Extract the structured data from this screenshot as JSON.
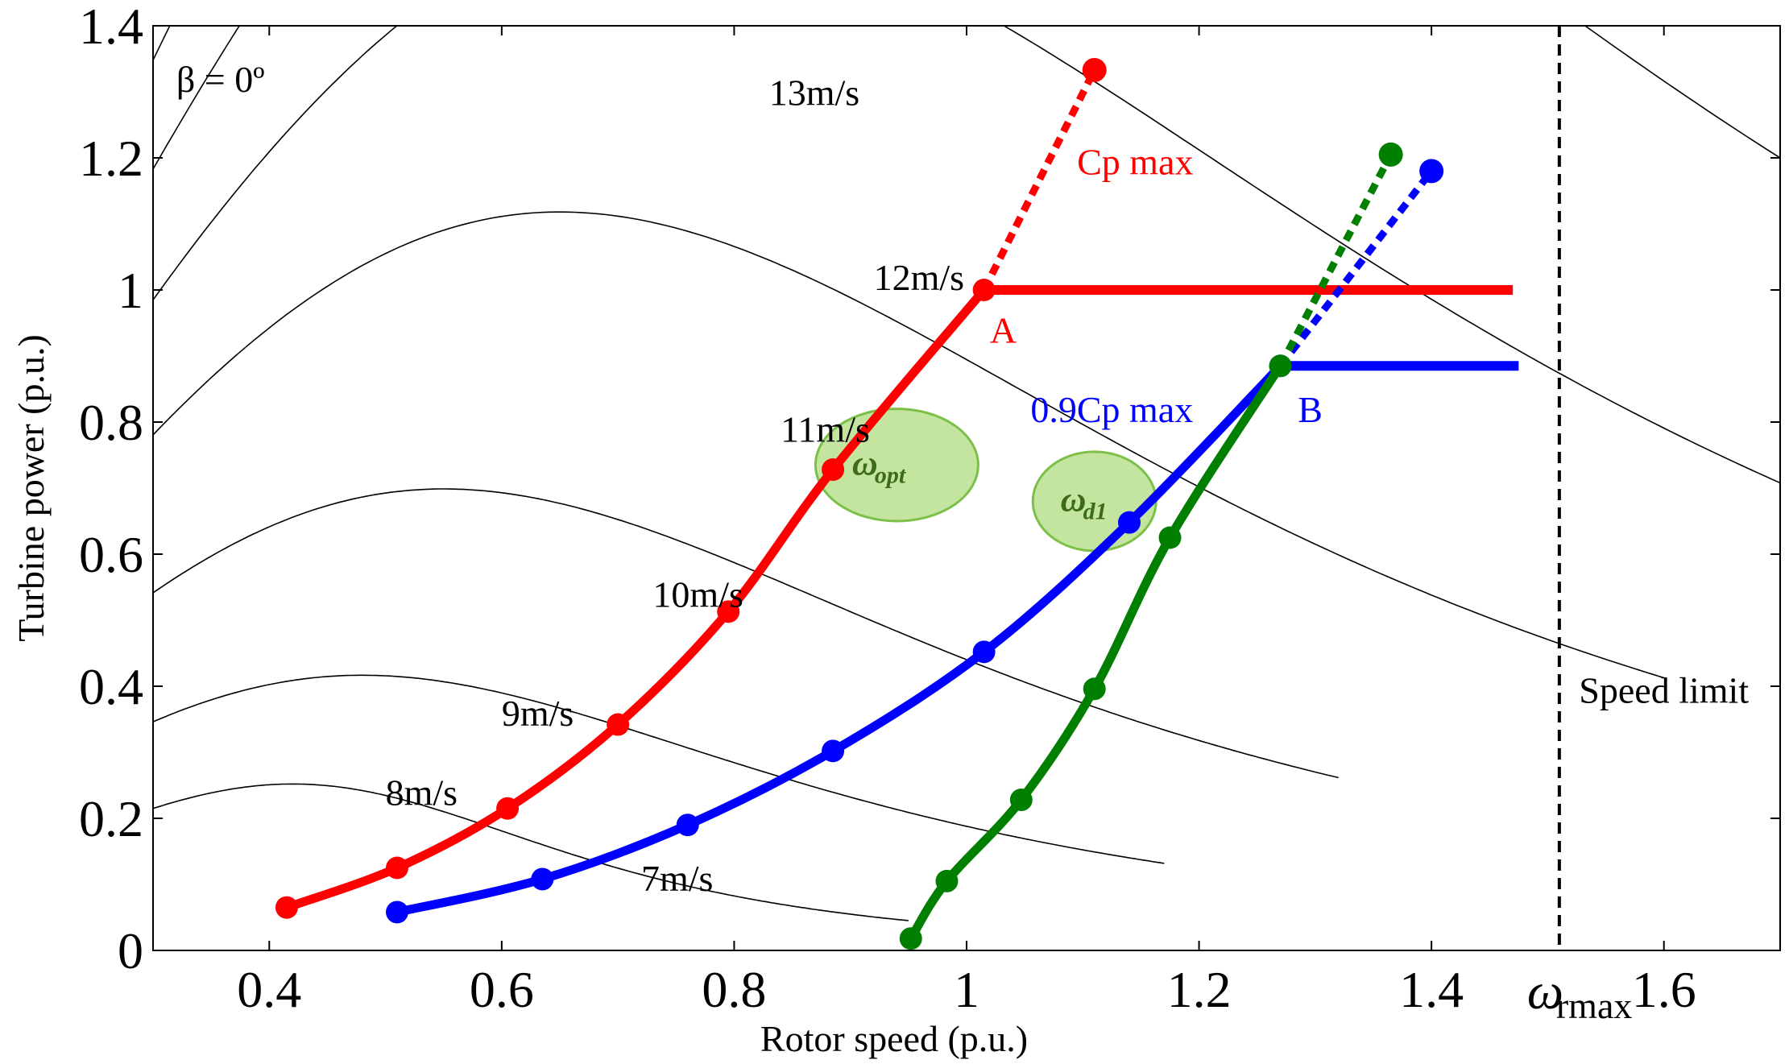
{
  "chart_data": {
    "type": "line",
    "xlabel": "Rotor speed (p.u.)",
    "ylabel": "Turbine power (p.u.)",
    "xlim": [
      0.3,
      1.7
    ],
    "ylim": [
      0,
      1.4
    ],
    "xticks": [
      "0.4",
      "0.6",
      "0.8",
      "1",
      "1.2",
      "1.4",
      "1.6"
    ],
    "yticks": [
      "0",
      "0.2",
      "0.4",
      "0.6",
      "0.8",
      "1",
      "1.2",
      "1.4"
    ],
    "grid": false,
    "power_curves": [
      {
        "label": "7m/s",
        "label_x": 0.72,
        "label_y": 0.09,
        "peak_x": 0.42,
        "peak_y": 0.063,
        "a": 1.0,
        "b": 4.0,
        "end_x": 0.95
      },
      {
        "label": "8m/s",
        "label_x": 0.5,
        "label_y": 0.22,
        "peak_x": 0.48,
        "peak_y": 0.125,
        "a": 0.84,
        "b": 2.8,
        "end_x": 1.17
      },
      {
        "label": "",
        "label_x": null,
        "label_y": null,
        "peak_x": 0.55,
        "peak_y": 0.215,
        "a": 0.8,
        "b": 2.6,
        "end_x": 1.32
      },
      {
        "label": "9m/s",
        "label_x": 0.6,
        "label_y": 0.34,
        "peak_x": 0.65,
        "peak_y": 0.342,
        "a": 0.78,
        "b": 2.55,
        "end_x": 1.6
      },
      {
        "label": "10m/s",
        "label_x": 0.73,
        "label_y": 0.52,
        "peak_x": 0.75,
        "peak_y": 0.513,
        "a": 0.8,
        "b": 2.45,
        "end_x": 1.7
      },
      {
        "label": "11m/s",
        "label_x": 0.84,
        "label_y": 0.77,
        "peak_x": 0.85,
        "peak_y": 0.728,
        "a": 0.82,
        "b": 2.35,
        "end_x": 1.7
      },
      {
        "label": "12m/s",
        "label_x": 0.92,
        "label_y": 1.0,
        "peak_x": 0.98,
        "peak_y": 1.0,
        "a": 0.84,
        "b": 2.25,
        "end_x": 1.7
      },
      {
        "label": "13m/s",
        "label_x": 0.83,
        "label_y": 1.28,
        "peak_x": 1.1,
        "peak_y": 1.333,
        "a": 0.86,
        "b": 2.2,
        "end_x": 1.7
      }
    ],
    "series": [
      {
        "name": "Cp max",
        "color": "#ff0000",
        "points": [
          [
            0.415,
            0.065
          ],
          [
            0.51,
            0.125
          ],
          [
            0.605,
            0.215
          ],
          [
            0.7,
            0.342
          ],
          [
            0.795,
            0.513
          ],
          [
            0.885,
            0.728
          ],
          [
            1.015,
            1.0
          ]
        ],
        "dotted_extension": [
          [
            1.015,
            1.0
          ],
          [
            1.11,
            1.333
          ]
        ],
        "end_marker": [
          1.11,
          1.333
        ],
        "plateau": [
          [
            1.015,
            1.0
          ],
          [
            1.47,
            1.0
          ]
        ]
      },
      {
        "name": "0.9Cp max",
        "color": "#0000ff",
        "points": [
          [
            0.51,
            0.058
          ],
          [
            0.635,
            0.108
          ],
          [
            0.76,
            0.19
          ],
          [
            0.885,
            0.302
          ],
          [
            1.015,
            0.452
          ],
          [
            1.14,
            0.648
          ],
          [
            1.27,
            0.885
          ]
        ],
        "dotted_extension": [
          [
            1.27,
            0.885
          ],
          [
            1.4,
            1.18
          ]
        ],
        "end_marker": [
          1.4,
          1.18
        ],
        "plateau": [
          [
            1.27,
            0.885
          ],
          [
            1.475,
            0.885
          ]
        ]
      },
      {
        "name": "",
        "color": "#007f00",
        "points": [
          [
            0.952,
            0.018
          ],
          [
            0.983,
            0.105
          ],
          [
            1.047,
            0.228
          ],
          [
            1.11,
            0.396
          ],
          [
            1.175,
            0.625
          ],
          [
            1.27,
            0.885
          ]
        ],
        "dotted_extension": [
          [
            1.27,
            0.885
          ],
          [
            1.365,
            1.205
          ]
        ],
        "end_marker": [
          1.365,
          1.205
        ]
      }
    ],
    "speed_limit": {
      "x": 1.51,
      "label": "Speed limit",
      "label_x": 1.6,
      "label_y": 0.375
    },
    "omega_rmax_label": {
      "main": "ω",
      "sub": "rmax",
      "x": 1.51
    },
    "annotations": [
      {
        "text": "β = 0º",
        "x": 0.32,
        "y": 1.3,
        "color": "#000000"
      },
      {
        "text": "Cp max",
        "x": 1.095,
        "y": 1.175,
        "color": "#ff0000"
      },
      {
        "text": "A",
        "x": 1.02,
        "y": 0.92,
        "color": "#ff0000"
      },
      {
        "text": "0.9Cp max",
        "x": 1.055,
        "y": 0.8,
        "color": "#0000ff"
      },
      {
        "text": "B",
        "x": 1.285,
        "y": 0.8,
        "color": "#0000ff"
      }
    ],
    "highlight_ellipses": [
      {
        "label_main": "ω",
        "label_sub": "opt",
        "cx": 0.94,
        "cy": 0.735,
        "rx": 0.07,
        "ry": 0.085
      },
      {
        "label_main": "ω",
        "label_sub": "d1",
        "cx": 1.11,
        "cy": 0.68,
        "rx": 0.053,
        "ry": 0.075
      }
    ]
  }
}
